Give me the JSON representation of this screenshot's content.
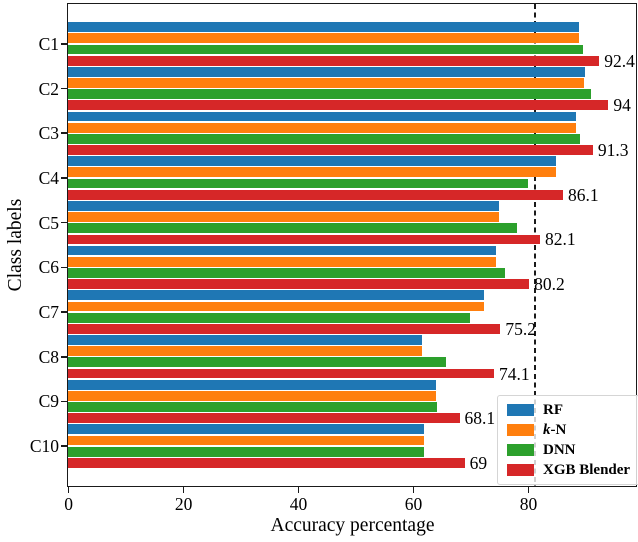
{
  "chart_data": {
    "type": "bar",
    "orientation": "horizontal",
    "xlabel": "Accuracy percentage",
    "ylabel": "Class labels",
    "categories": [
      "C1",
      "C2",
      "C3",
      "C4",
      "C5",
      "C6",
      "C7",
      "C8",
      "C9",
      "C10"
    ],
    "series": [
      {
        "name": "RF",
        "color": "#1f77b4",
        "values": [
          88.9,
          89.9,
          88.4,
          84.9,
          74.9,
          74.4,
          72.4,
          61.6,
          64.0,
          62.0
        ]
      },
      {
        "name": "k-N",
        "color": "#ff7f0e",
        "values": [
          88.9,
          89.8,
          88.3,
          84.9,
          74.9,
          74.4,
          72.4,
          61.6,
          64.0,
          62.0
        ],
        "italic_prefix_len": 1
      },
      {
        "name": "DNN",
        "color": "#2ca02c",
        "values": [
          89.6,
          91.0,
          89.1,
          80.0,
          78.1,
          76.1,
          70.0,
          65.8,
          64.2,
          62.0
        ]
      },
      {
        "name": "XGB Blender",
        "color": "#d62728",
        "values": [
          92.4,
          94.0,
          91.3,
          86.1,
          82.1,
          80.2,
          75.2,
          74.1,
          68.1,
          69.0
        ]
      }
    ],
    "bar_labels": [
      "92.4",
      "94",
      "91.3",
      "86.1",
      "82.1",
      "80.2",
      "75.2",
      "74.1",
      "68.1",
      "69"
    ],
    "bar_labels_series": "XGB Blender",
    "x_ticks": [
      "0",
      "20",
      "40",
      "60",
      "80"
    ],
    "x_tick_values": [
      0,
      20,
      40,
      60,
      80
    ],
    "xlim": [
      0,
      98.8
    ],
    "grid": false,
    "reference_line": {
      "value": 81.25,
      "style": "dashed",
      "color": "#1a1a1a"
    },
    "legend": {
      "position": "lower right"
    }
  }
}
